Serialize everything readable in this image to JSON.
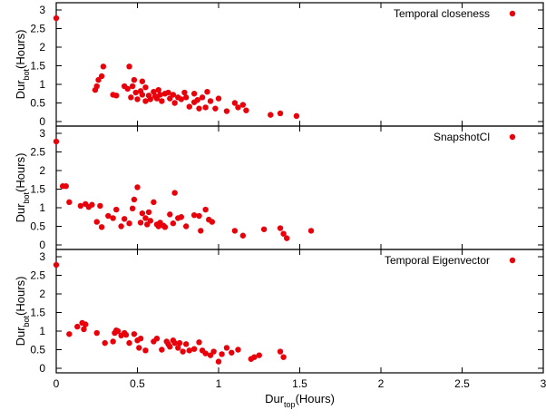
{
  "chart_data": [
    {
      "type": "scatter",
      "xlim": [
        0,
        3
      ],
      "ylim": [
        0,
        3
      ],
      "grid": false,
      "legend_position": "top-right",
      "color": "#e8000b",
      "ylabel": {
        "main": "Dur",
        "sub": "bot",
        "tail": "(Hours)"
      },
      "yticks": [
        "0",
        "0.5",
        "1",
        "1.5",
        "2",
        "2.5",
        "3"
      ],
      "series": [
        {
          "name": "Temporal closeness",
          "points": [
            [
              0.0,
              2.78
            ],
            [
              0.24,
              0.85
            ],
            [
              0.25,
              0.95
            ],
            [
              0.26,
              1.12
            ],
            [
              0.28,
              1.22
            ],
            [
              0.29,
              1.48
            ],
            [
              0.35,
              0.72
            ],
            [
              0.37,
              0.7
            ],
            [
              0.42,
              0.95
            ],
            [
              0.44,
              0.88
            ],
            [
              0.45,
              1.48
            ],
            [
              0.46,
              0.65
            ],
            [
              0.47,
              0.95
            ],
            [
              0.48,
              1.12
            ],
            [
              0.49,
              0.78
            ],
            [
              0.5,
              0.6
            ],
            [
              0.52,
              0.82
            ],
            [
              0.53,
              0.72
            ],
            [
              0.53,
              1.08
            ],
            [
              0.55,
              0.55
            ],
            [
              0.55,
              0.92
            ],
            [
              0.57,
              0.7
            ],
            [
              0.58,
              0.6
            ],
            [
              0.6,
              0.8
            ],
            [
              0.61,
              0.68
            ],
            [
              0.62,
              0.62
            ],
            [
              0.63,
              0.85
            ],
            [
              0.64,
              0.72
            ],
            [
              0.65,
              0.55
            ],
            [
              0.67,
              0.75
            ],
            [
              0.69,
              0.78
            ],
            [
              0.7,
              0.62
            ],
            [
              0.72,
              0.72
            ],
            [
              0.73,
              0.5
            ],
            [
              0.75,
              0.65
            ],
            [
              0.77,
              0.6
            ],
            [
              0.79,
              0.78
            ],
            [
              0.8,
              0.65
            ],
            [
              0.82,
              0.4
            ],
            [
              0.85,
              0.75
            ],
            [
              0.85,
              0.52
            ],
            [
              0.87,
              0.58
            ],
            [
              0.88,
              0.35
            ],
            [
              0.9,
              0.65
            ],
            [
              0.92,
              0.38
            ],
            [
              0.93,
              0.8
            ],
            [
              0.95,
              0.55
            ],
            [
              0.98,
              0.35
            ],
            [
              1.0,
              0.62
            ],
            [
              1.05,
              0.28
            ],
            [
              1.1,
              0.5
            ],
            [
              1.12,
              0.38
            ],
            [
              1.15,
              0.45
            ],
            [
              1.17,
              0.3
            ],
            [
              1.32,
              0.18
            ],
            [
              1.38,
              0.22
            ],
            [
              1.48,
              0.15
            ]
          ]
        }
      ]
    },
    {
      "type": "scatter",
      "xlim": [
        0,
        3
      ],
      "ylim": [
        0,
        3
      ],
      "grid": false,
      "legend_position": "top-right",
      "color": "#e8000b",
      "ylabel": {
        "main": "Dur",
        "sub": "bot",
        "tail": "(Hours)"
      },
      "yticks": [
        "0",
        "0.5",
        "1",
        "1.5",
        "2",
        "2.5",
        "3"
      ],
      "series": [
        {
          "name": "SnapshotCl",
          "points": [
            [
              0.0,
              2.78
            ],
            [
              0.04,
              1.58
            ],
            [
              0.06,
              1.58
            ],
            [
              0.08,
              1.15
            ],
            [
              0.15,
              1.05
            ],
            [
              0.18,
              1.1
            ],
            [
              0.2,
              1.02
            ],
            [
              0.22,
              1.08
            ],
            [
              0.25,
              0.62
            ],
            [
              0.27,
              1.05
            ],
            [
              0.28,
              0.48
            ],
            [
              0.32,
              0.78
            ],
            [
              0.35,
              0.72
            ],
            [
              0.37,
              0.95
            ],
            [
              0.4,
              0.5
            ],
            [
              0.42,
              0.7
            ],
            [
              0.45,
              0.58
            ],
            [
              0.47,
              0.98
            ],
            [
              0.48,
              1.22
            ],
            [
              0.5,
              1.55
            ],
            [
              0.52,
              0.6
            ],
            [
              0.53,
              0.85
            ],
            [
              0.55,
              0.72
            ],
            [
              0.56,
              0.55
            ],
            [
              0.57,
              0.88
            ],
            [
              0.58,
              0.65
            ],
            [
              0.6,
              1.15
            ],
            [
              0.62,
              0.55
            ],
            [
              0.63,
              0.5
            ],
            [
              0.64,
              0.6
            ],
            [
              0.66,
              0.52
            ],
            [
              0.67,
              0.48
            ],
            [
              0.7,
              0.82
            ],
            [
              0.72,
              0.58
            ],
            [
              0.73,
              1.4
            ],
            [
              0.75,
              0.72
            ],
            [
              0.77,
              0.75
            ],
            [
              0.8,
              0.5
            ],
            [
              0.85,
              0.8
            ],
            [
              0.88,
              0.78
            ],
            [
              0.89,
              0.38
            ],
            [
              0.92,
              0.95
            ],
            [
              0.94,
              0.68
            ],
            [
              0.96,
              0.62
            ],
            [
              1.1,
              0.38
            ],
            [
              1.15,
              0.25
            ],
            [
              1.28,
              0.42
            ],
            [
              1.38,
              0.45
            ],
            [
              1.4,
              0.3
            ],
            [
              1.42,
              0.18
            ],
            [
              1.57,
              0.38
            ]
          ]
        }
      ]
    },
    {
      "type": "scatter",
      "xlim": [
        0,
        3
      ],
      "ylim": [
        0,
        3
      ],
      "grid": false,
      "legend_position": "top-right",
      "color": "#e8000b",
      "ylabel": {
        "main": "Dur",
        "sub": "bot",
        "tail": "(Hours)"
      },
      "yticks": [
        "0",
        "0.5",
        "1",
        "1.5",
        "2",
        "2.5",
        "3"
      ],
      "xlabel": {
        "main": "Dur",
        "sub": "top",
        "tail": "(Hours)"
      },
      "xticks": [
        "0",
        "0.5",
        "1",
        "1.5",
        "2",
        "2.5",
        "3"
      ],
      "series": [
        {
          "name": "Temporal Eigenvector",
          "points": [
            [
              0.0,
              2.78
            ],
            [
              0.08,
              0.92
            ],
            [
              0.13,
              1.12
            ],
            [
              0.16,
              1.22
            ],
            [
              0.17,
              1.05
            ],
            [
              0.18,
              1.18
            ],
            [
              0.25,
              0.95
            ],
            [
              0.3,
              0.68
            ],
            [
              0.35,
              0.72
            ],
            [
              0.36,
              0.95
            ],
            [
              0.37,
              1.02
            ],
            [
              0.38,
              1.0
            ],
            [
              0.4,
              0.88
            ],
            [
              0.42,
              0.95
            ],
            [
              0.43,
              0.9
            ],
            [
              0.45,
              0.68
            ],
            [
              0.48,
              0.92
            ],
            [
              0.5,
              0.75
            ],
            [
              0.51,
              0.55
            ],
            [
              0.52,
              0.8
            ],
            [
              0.55,
              0.48
            ],
            [
              0.6,
              0.72
            ],
            [
              0.62,
              0.8
            ],
            [
              0.65,
              0.5
            ],
            [
              0.68,
              0.72
            ],
            [
              0.69,
              0.65
            ],
            [
              0.7,
              0.58
            ],
            [
              0.72,
              0.75
            ],
            [
              0.73,
              0.68
            ],
            [
              0.75,
              0.55
            ],
            [
              0.76,
              0.68
            ],
            [
              0.78,
              0.45
            ],
            [
              0.8,
              0.65
            ],
            [
              0.82,
              0.48
            ],
            [
              0.85,
              0.52
            ],
            [
              0.88,
              0.7
            ],
            [
              0.9,
              0.48
            ],
            [
              0.92,
              0.4
            ],
            [
              0.95,
              0.35
            ],
            [
              0.97,
              0.45
            ],
            [
              1.0,
              0.18
            ],
            [
              1.02,
              0.38
            ],
            [
              1.05,
              0.55
            ],
            [
              1.08,
              0.42
            ],
            [
              1.12,
              0.5
            ],
            [
              1.2,
              0.25
            ],
            [
              1.22,
              0.3
            ],
            [
              1.25,
              0.35
            ],
            [
              1.38,
              0.45
            ],
            [
              1.4,
              0.3
            ]
          ]
        }
      ]
    }
  ]
}
